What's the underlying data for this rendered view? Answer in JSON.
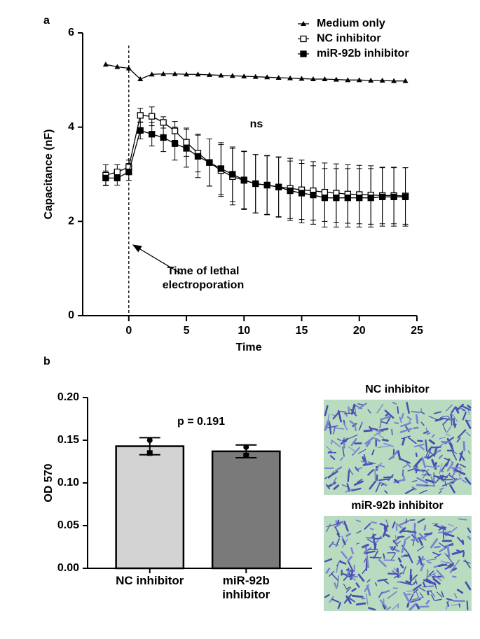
{
  "panel_labels": [
    "a",
    "b"
  ],
  "chart_data": [
    {
      "type": "line",
      "xlabel": "Time",
      "ylabel": "Capacitance (nF)",
      "x": [
        -2,
        -1,
        0,
        1,
        2,
        3,
        4,
        5,
        6,
        7,
        8,
        9,
        10,
        11,
        12,
        13,
        14,
        15,
        16,
        17,
        18,
        19,
        20,
        21,
        22,
        23,
        24
      ],
      "xlim": [
        -4,
        25
      ],
      "xticks": [
        0,
        5,
        10,
        15,
        20,
        25
      ],
      "ylim": [
        0,
        6
      ],
      "yticks": [
        0,
        2,
        4,
        6
      ],
      "reference_line": 0,
      "legend": "top-right",
      "annotations": [
        "ns",
        "Time of lethal electroporation"
      ],
      "series": [
        {
          "name": "Medium only",
          "color": "#000000",
          "marker": "triangle",
          "values": [
            5.33,
            5.28,
            5.25,
            5.02,
            5.12,
            5.13,
            5.13,
            5.12,
            5.12,
            5.11,
            5.1,
            5.09,
            5.08,
            5.07,
            5.06,
            5.05,
            5.04,
            5.03,
            5.02,
            5.02,
            5.01,
            5.0,
            5.0,
            4.99,
            4.99,
            4.98,
            4.98
          ]
        },
        {
          "name": "NC inhibitor",
          "color": "#000000",
          "marker": "open-square",
          "values": [
            2.98,
            3.05,
            3.15,
            4.25,
            4.23,
            4.1,
            3.92,
            3.68,
            3.45,
            3.25,
            3.08,
            2.95,
            2.87,
            2.8,
            2.77,
            2.73,
            2.7,
            2.67,
            2.65,
            2.62,
            2.6,
            2.58,
            2.57,
            2.56,
            2.55,
            2.55,
            2.54
          ],
          "errors": [
            0.22,
            0.15,
            0.15,
            0.15,
            0.2,
            0.12,
            0.2,
            0.3,
            0.4,
            0.5,
            0.55,
            0.6,
            0.62,
            0.62,
            0.63,
            0.64,
            0.64,
            0.63,
            0.62,
            0.62,
            0.62,
            0.62,
            0.62,
            0.62,
            0.6,
            0.6,
            0.6
          ]
        },
        {
          "name": "miR-92b inhibitor",
          "color": "#000000",
          "marker": "filled-square",
          "values": [
            2.92,
            2.92,
            3.05,
            3.93,
            3.85,
            3.78,
            3.65,
            3.55,
            3.38,
            3.25,
            3.12,
            3.0,
            2.88,
            2.8,
            2.77,
            2.73,
            2.65,
            2.6,
            2.56,
            2.5,
            2.5,
            2.5,
            2.5,
            2.5,
            2.52,
            2.52,
            2.52
          ],
          "errors": [
            0.15,
            0.15,
            0.18,
            0.18,
            0.25,
            0.3,
            0.35,
            0.4,
            0.45,
            0.5,
            0.55,
            0.58,
            0.6,
            0.62,
            0.62,
            0.63,
            0.63,
            0.63,
            0.62,
            0.62,
            0.62,
            0.62,
            0.62,
            0.62,
            0.62,
            0.62,
            0.62
          ]
        }
      ]
    },
    {
      "type": "bar",
      "ylabel": "OD 570",
      "categories": [
        "NC inhibitor",
        "miR-92b inhibitor"
      ],
      "values": [
        0.143,
        0.137
      ],
      "errors": [
        0.01,
        0.0075
      ],
      "points": [
        [
          0.15,
          0.135
        ],
        [
          0.142,
          0.132
        ]
      ],
      "colors": [
        "#d3d3d3",
        "#7a7a7a"
      ],
      "ylim": [
        0,
        0.2
      ],
      "yticks": [
        {
          "value": 0,
          "label": "0.00"
        },
        {
          "value": 0.05,
          "label": "0.05"
        },
        {
          "value": 0.1,
          "label": "0.10"
        },
        {
          "value": 0.15,
          "label": "0.15"
        },
        {
          "value": 0.2,
          "label": "0.20"
        }
      ],
      "annotations": [
        "p = 0.191"
      ]
    }
  ],
  "images": [
    {
      "label": "NC inhibitor"
    },
    {
      "label": "miR-92b inhibitor"
    }
  ]
}
